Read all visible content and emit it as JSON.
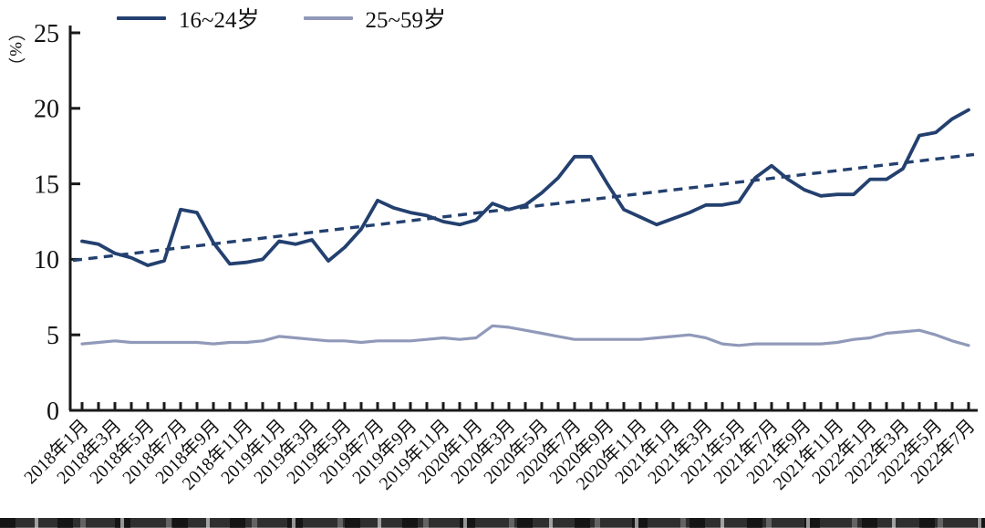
{
  "figure": {
    "background": "#ffffff",
    "axis_color": "#1a1a1a",
    "text_color": "#111111"
  },
  "legend": {
    "items": [
      {
        "label": "16~24岁",
        "color": "#23406f",
        "style": "solid"
      },
      {
        "label": "25~59岁",
        "color": "#9099b9",
        "style": "solid"
      }
    ]
  },
  "chart_data": {
    "type": "line",
    "title": "",
    "ylabel": "（%）",
    "xlabel": "",
    "ylim": [
      0,
      25
    ],
    "yticks": [
      0,
      5,
      10,
      15,
      20,
      25
    ],
    "grid": false,
    "legend_position": "top-left",
    "x_months_start": "2018年1月",
    "x_months_end": "2022年7月",
    "x_points_per_tick_label": 2,
    "x_tick_labels": [
      "2018年1月",
      "2018年3月",
      "2018年5月",
      "2018年7月",
      "2018年9月",
      "2018年11月",
      "2019年1月",
      "2019年3月",
      "2019年5月",
      "2019年7月",
      "2019年9月",
      "2019年11月",
      "2020年1月",
      "2020年3月",
      "2020年5月",
      "2020年7月",
      "2020年9月",
      "2020年11月",
      "2021年1月",
      "2021年3月",
      "2021年5月",
      "2021年7月",
      "2021年9月",
      "2021年11月",
      "2022年1月",
      "2022年3月",
      "2022年5月",
      "2022年7月"
    ],
    "series": [
      {
        "name": "16~24岁",
        "color": "#23406f",
        "line_style": "solid",
        "values": [
          11.2,
          11.0,
          10.4,
          10.1,
          9.6,
          9.9,
          13.3,
          13.1,
          11.1,
          9.7,
          9.8,
          10.0,
          11.2,
          11.0,
          11.3,
          9.9,
          10.8,
          12.0,
          13.9,
          13.4,
          13.1,
          12.9,
          12.5,
          12.3,
          12.6,
          13.7,
          13.3,
          13.6,
          14.4,
          15.4,
          16.8,
          16.8,
          15.0,
          13.3,
          12.8,
          12.3,
          12.7,
          13.1,
          13.6,
          13.6,
          13.8,
          15.4,
          16.2,
          15.3,
          14.6,
          14.2,
          14.3,
          14.3,
          15.3,
          15.3,
          16.0,
          18.2,
          18.4,
          19.3,
          19.9
        ]
      },
      {
        "name": "25~59岁",
        "color": "#9099b9",
        "line_style": "solid",
        "values": [
          4.4,
          4.5,
          4.6,
          4.5,
          4.5,
          4.5,
          4.5,
          4.5,
          4.4,
          4.5,
          4.5,
          4.6,
          4.9,
          4.8,
          4.7,
          4.6,
          4.6,
          4.5,
          4.6,
          4.6,
          4.6,
          4.7,
          4.8,
          4.7,
          4.8,
          5.6,
          5.5,
          5.3,
          5.1,
          4.9,
          4.7,
          4.7,
          4.7,
          4.7,
          4.7,
          4.8,
          4.9,
          5.0,
          4.8,
          4.4,
          4.3,
          4.4,
          4.4,
          4.4,
          4.4,
          4.4,
          4.5,
          4.7,
          4.8,
          5.1,
          5.2,
          5.3,
          5.0,
          4.6,
          4.3
        ]
      }
    ],
    "trendline": {
      "applies_to": "16~24岁",
      "line_style": "dashed",
      "color": "#23406f",
      "start_value": 10.0,
      "end_value": 16.9
    }
  }
}
